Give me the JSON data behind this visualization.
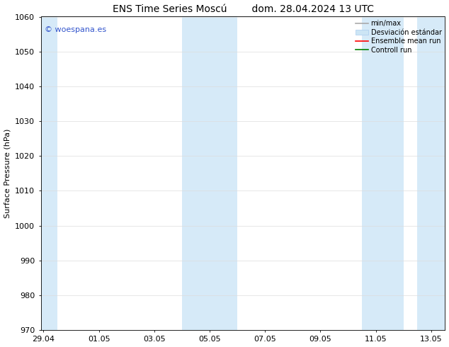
{
  "title": "ENS Time Series Moscú        dom. 28.04.2024 13 UTC",
  "ylabel": "Surface Pressure (hPa)",
  "ylim": [
    970,
    1060
  ],
  "yticks": [
    970,
    980,
    990,
    1000,
    1010,
    1020,
    1030,
    1040,
    1050,
    1060
  ],
  "xtick_labels": [
    "29.04",
    "01.05",
    "03.05",
    "05.05",
    "07.05",
    "09.05",
    "11.05",
    "13.05"
  ],
  "shaded_color": "#d6eaf8",
  "watermark_text": "© woespana.es",
  "watermark_color": "#3355cc",
  "bg_color": "#ffffff",
  "grid_color": "#dddddd",
  "tick_label_fontsize": 8,
  "title_fontsize": 10,
  "ylabel_fontsize": 8,
  "legend_fontsize": 7
}
